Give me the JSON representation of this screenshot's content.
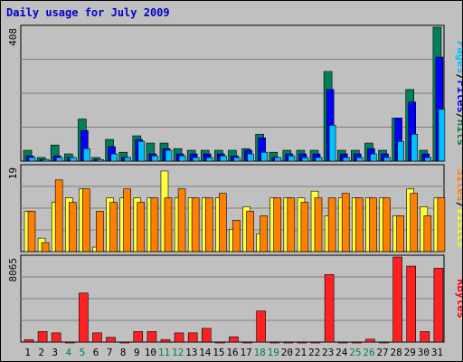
{
  "chart_data": {
    "type": "bar",
    "title": "Daily usage for July 2009",
    "days": [
      "1",
      "2",
      "3",
      "4",
      "5",
      "6",
      "7",
      "8",
      "9",
      "10",
      "11",
      "12",
      "13",
      "14",
      "15",
      "16",
      "17",
      "18",
      "19",
      "20",
      "21",
      "22",
      "23",
      "24",
      "25",
      "26",
      "27",
      "28",
      "29",
      "30",
      "31"
    ],
    "weekend_days": [
      "4",
      "5",
      "11",
      "12",
      "18",
      "19",
      "25",
      "26"
    ],
    "panels": {
      "hits_files_pages": {
        "ymax_label": "408",
        "ymax": 408,
        "labels": [
          {
            "text": "Hits",
            "color": "#008040"
          },
          {
            "text": "Files",
            "color": "#0000ff"
          },
          {
            "text": "Pages",
            "color": "#00c0ff"
          }
        ],
        "series": [
          {
            "name": "Hits",
            "color": "#00805a",
            "values": [
              33,
              11,
              49,
              22,
              128,
              11,
              66,
              27,
              77,
              55,
              55,
              38,
              33,
              33,
              33,
              33,
              38,
              82,
              27,
              33,
              33,
              33,
              273,
              33,
              33,
              55,
              33,
              131,
              218,
              33,
              408
            ]
          },
          {
            "name": "Files",
            "color": "#0000ff",
            "values": [
              16,
              5,
              16,
              11,
              93,
              5,
              44,
              11,
              66,
              22,
              38,
              22,
              22,
              22,
              22,
              16,
              33,
              71,
              11,
              22,
              22,
              22,
              218,
              22,
              22,
              38,
              22,
              131,
              180,
              22,
              317
            ]
          },
          {
            "name": "Pages",
            "color": "#00c0ff",
            "values": [
              11,
              5,
              11,
              11,
              38,
              5,
              22,
              11,
              60,
              16,
              33,
              16,
              11,
              11,
              16,
              11,
              22,
              27,
              11,
              16,
              11,
              11,
              109,
              11,
              11,
              22,
              11,
              60,
              82,
              11,
              158
            ]
          }
        ]
      },
      "visits_sites": {
        "ymax_label": "19",
        "ymax": 19,
        "labels": [
          {
            "text": "Visits",
            "color": "#ffff00"
          },
          {
            "text": "Sites",
            "color": "#ff8000"
          }
        ],
        "series": [
          {
            "name": "Visits",
            "color": "#ffff40",
            "values": [
              9,
              3,
              11,
              12,
              14,
              1,
              12,
              12,
              12,
              12,
              18,
              12,
              12,
              12,
              12,
              5,
              10,
              4,
              12,
              12,
              12,
              13.5,
              8,
              12,
              12,
              12,
              12,
              8,
              14,
              10,
              12
            ]
          },
          {
            "name": "Sites",
            "color": "#ff8000",
            "values": [
              9,
              2,
              16,
              11,
              14,
              9,
              11,
              14,
              11,
              12,
              12,
              14,
              12,
              12,
              13,
              7,
              9,
              8,
              12,
              12,
              11,
              12,
              12,
              13,
              12,
              12,
              12,
              8,
              13,
              8,
              12
            ]
          }
        ]
      },
      "kbytes": {
        "ymax_label": "8065",
        "ymax": 8065,
        "labels": [
          {
            "text": "KBytes",
            "color": "#ff0000"
          }
        ],
        "series": [
          {
            "name": "KBytes",
            "color": "#ff2020",
            "values": [
              230,
              1000,
              870,
              0,
              4650,
              870,
              450,
              0,
              1000,
              1000,
              240,
              870,
              870,
              1300,
              0,
              500,
              0,
              2950,
              0,
              0,
              0,
              0,
              6400,
              0,
              0,
              270,
              0,
              8065,
              7200,
              1000,
              7000
            ]
          }
        ]
      }
    }
  }
}
